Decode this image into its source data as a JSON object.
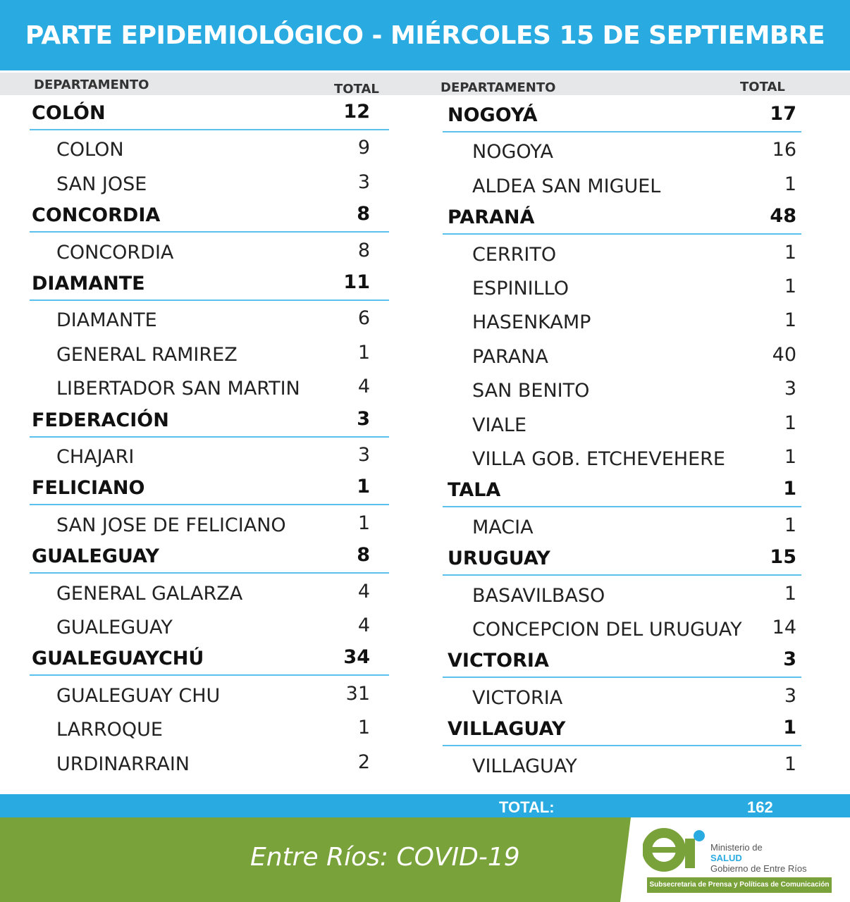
{
  "header": {
    "title": "PARTE EPIDEMIOLÓGICO - MIÉRCOLES 15 DE SEPTIEMBRE"
  },
  "columns": [
    {
      "header_department": "DEPARTAMENTO",
      "header_total": "TOTAL",
      "departments": [
        {
          "name": "COLÓN",
          "total": 12,
          "localities": [
            {
              "name": "COLON",
              "total": 9
            },
            {
              "name": "SAN JOSE",
              "total": 3
            }
          ]
        },
        {
          "name": "CONCORDIA",
          "total": 8,
          "localities": [
            {
              "name": "CONCORDIA",
              "total": 8
            }
          ]
        },
        {
          "name": "DIAMANTE",
          "total": 11,
          "localities": [
            {
              "name": "DIAMANTE",
              "total": 6
            },
            {
              "name": "GENERAL RAMIREZ",
              "total": 1
            },
            {
              "name": "LIBERTADOR SAN MARTIN",
              "total": 4
            }
          ]
        },
        {
          "name": "FEDERACIÓN",
          "total": 3,
          "localities": [
            {
              "name": "CHAJARI",
              "total": 3
            }
          ]
        },
        {
          "name": "FELICIANO",
          "total": 1,
          "localities": [
            {
              "name": "SAN JOSE DE FELICIANO",
              "total": 1
            }
          ]
        },
        {
          "name": "GUALEGUAY",
          "total": 8,
          "localities": [
            {
              "name": "GENERAL GALARZA",
              "total": 4
            },
            {
              "name": "GUALEGUAY",
              "total": 4
            }
          ]
        },
        {
          "name": "GUALEGUAYCHÚ",
          "total": 34,
          "localities": [
            {
              "name": "GUALEGUAY CHU",
              "total": 31
            },
            {
              "name": "LARROQUE",
              "total": 1
            },
            {
              "name": "URDINARRAIN",
              "total": 2
            }
          ]
        }
      ]
    },
    {
      "header_department": "DEPARTAMENTO",
      "header_total": "TOTAL",
      "departments": [
        {
          "name": "NOGOYÁ",
          "total": 17,
          "localities": [
            {
              "name": "NOGOYA",
              "total": 16
            },
            {
              "name": "ALDEA SAN MIGUEL",
              "total": 1
            }
          ]
        },
        {
          "name": "PARANÁ",
          "total": 48,
          "localities": [
            {
              "name": "CERRITO",
              "total": 1
            },
            {
              "name": "ESPINILLO",
              "total": 1
            },
            {
              "name": "HASENKAMP",
              "total": 1
            },
            {
              "name": "PARANA",
              "total": 40
            },
            {
              "name": "SAN BENITO",
              "total": 3
            },
            {
              "name": "VIALE",
              "total": 1
            },
            {
              "name": "VILLA GOB. ETCHEVEHERE",
              "total": 1
            }
          ]
        },
        {
          "name": "TALA",
          "total": 1,
          "localities": [
            {
              "name": "MACIA",
              "total": 1
            }
          ]
        },
        {
          "name": "URUGUAY",
          "total": 15,
          "localities": [
            {
              "name": "BASAVILBASO",
              "total": 1
            },
            {
              "name": "CONCEPCION DEL URUGUAY",
              "total": 14
            }
          ]
        },
        {
          "name": "VICTORIA",
          "total": 3,
          "localities": [
            {
              "name": "VICTORIA",
              "total": 3
            }
          ]
        },
        {
          "name": "VILLAGUAY",
          "total": 1,
          "localities": [
            {
              "name": "VILLAGUAY",
              "total": 1
            }
          ]
        }
      ]
    }
  ],
  "total": {
    "label": "TOTAL:",
    "value": 162
  },
  "footer": {
    "text": "Entre Ríos: COVID-19",
    "logo_line1": "Ministerio de",
    "logo_line2": "SALUD",
    "logo_line3": "Gobierno de Entre Ríos",
    "subtitle": "Subsecretaria de Prensa y Políticas de Comunicación"
  }
}
